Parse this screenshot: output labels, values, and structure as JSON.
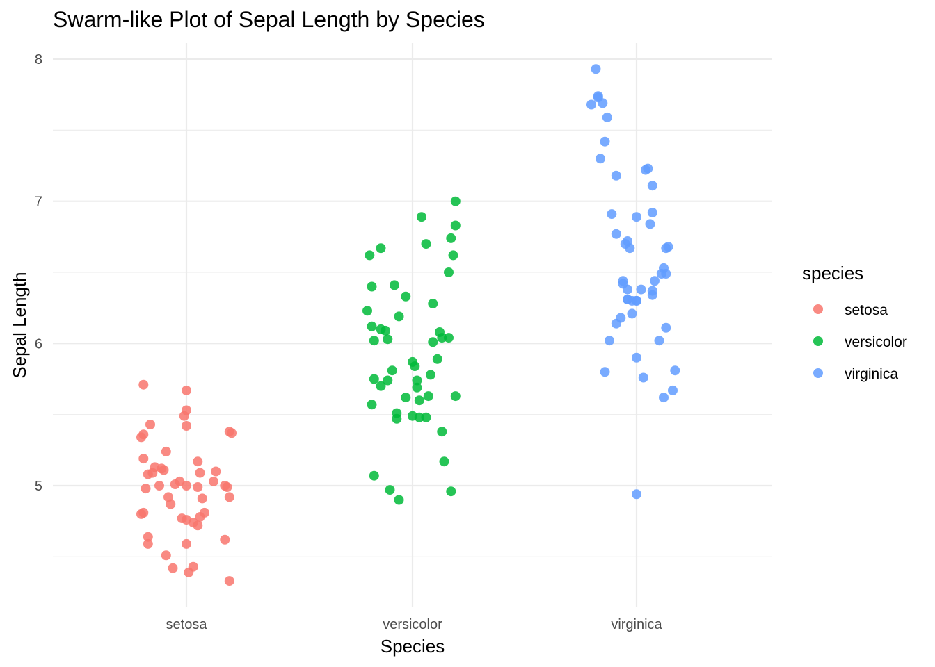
{
  "chart_data": {
    "type": "scatter",
    "title": "Swarm-like Plot of Sepal Length by Species",
    "xlabel": "Species",
    "ylabel": "Sepal Length",
    "categories": [
      "setosa",
      "versicolor",
      "virginica"
    ],
    "ylim": [
      4.25,
      8.1
    ],
    "y_ticks": [
      "5",
      "6",
      "7",
      "8"
    ],
    "grid": true,
    "legend": {
      "title": "species",
      "position": "right"
    },
    "colors": {
      "setosa": "#F8766D",
      "versicolor": "#00BA38",
      "virginica": "#619CFF"
    },
    "series": [
      {
        "name": "setosa",
        "jitter": [
          -0.19,
          -0.16,
          -0.19,
          -0.2,
          -0.19,
          -0.1,
          -0.12,
          -0.09,
          -0.11,
          -0.15,
          -0.14,
          -0.17,
          -0.18,
          -0.19,
          -0.2,
          -0.17,
          -0.17,
          -0.09,
          -0.06,
          -0.07,
          0.01,
          -0.05,
          -0.03,
          0.06,
          0.03,
          0.08,
          0.05,
          0.0,
          -0.08,
          0.0,
          0.03,
          0.07,
          0.0,
          -0.02,
          0.05,
          0.06,
          0.05,
          0.12,
          0.13,
          0.17,
          0.18,
          0.19,
          0.17,
          0.19,
          0.2,
          0.19,
          0.0,
          0.0,
          0.0,
          -0.01
        ],
        "values": [
          5.71,
          5.43,
          5.36,
          5.34,
          5.19,
          5.11,
          5.0,
          5.24,
          5.12,
          5.09,
          5.13,
          5.08,
          4.98,
          4.81,
          4.8,
          4.64,
          4.59,
          4.51,
          4.42,
          4.87,
          4.39,
          5.01,
          5.03,
          4.78,
          4.74,
          4.81,
          4.72,
          4.59,
          4.92,
          4.76,
          4.43,
          4.91,
          5.0,
          4.77,
          4.99,
          5.09,
          5.17,
          5.03,
          5.1,
          5.0,
          4.99,
          4.92,
          4.62,
          4.33,
          5.37,
          5.38,
          5.42,
          5.53,
          5.67,
          5.49
        ]
      },
      {
        "name": "versicolor",
        "jitter": [
          -0.19,
          -0.14,
          -0.18,
          -0.2,
          -0.18,
          -0.17,
          -0.14,
          -0.11,
          -0.12,
          -0.08,
          -0.17,
          -0.18,
          -0.14,
          -0.11,
          -0.09,
          -0.07,
          -0.07,
          -0.03,
          -0.03,
          -0.06,
          0.0,
          0.01,
          0.02,
          0.02,
          0.03,
          0.0,
          0.03,
          0.06,
          0.07,
          0.08,
          0.09,
          0.09,
          0.11,
          0.13,
          0.12,
          0.13,
          0.14,
          0.17,
          0.19,
          0.16,
          0.19,
          0.19,
          0.17,
          0.18,
          0.16,
          0.06,
          0.04,
          -0.06,
          -0.1,
          -0.17
        ],
        "values": [
          6.62,
          6.67,
          6.4,
          6.23,
          6.12,
          6.02,
          6.1,
          6.03,
          6.09,
          6.41,
          5.75,
          5.57,
          5.7,
          5.74,
          5.81,
          5.47,
          5.51,
          5.62,
          6.33,
          6.19,
          5.87,
          5.84,
          5.74,
          5.69,
          5.6,
          5.49,
          5.48,
          5.48,
          5.63,
          5.78,
          6.28,
          6.01,
          5.89,
          6.04,
          6.08,
          5.38,
          5.17,
          4.96,
          5.63,
          6.04,
          7.0,
          6.83,
          6.74,
          6.62,
          6.5,
          6.7,
          6.89,
          4.9,
          4.97,
          5.07
        ]
      },
      {
        "name": "virginica",
        "jitter": [
          -0.18,
          -0.2,
          -0.16,
          -0.14,
          -0.15,
          -0.17,
          -0.17,
          -0.13,
          -0.09,
          -0.11,
          -0.09,
          -0.04,
          -0.03,
          -0.05,
          -0.04,
          -0.04,
          -0.0,
          -0.06,
          -0.06,
          -0.07,
          -0.02,
          -0.02,
          -0.09,
          -0.12,
          -0.14,
          0.03,
          0.0,
          -0.04,
          0.07,
          0.08,
          0.11,
          0.13,
          0.12,
          0.14,
          0.13,
          0.07,
          0.06,
          0.07,
          0.05,
          0.04,
          0.07,
          0.1,
          0.12,
          0.16,
          0.17,
          0.13,
          0.02,
          0.0,
          0.0,
          0.0
        ],
        "values": [
          7.93,
          7.68,
          7.3,
          7.42,
          7.69,
          7.73,
          7.74,
          7.59,
          7.18,
          6.91,
          6.77,
          6.72,
          6.67,
          6.7,
          6.31,
          6.31,
          6.3,
          6.44,
          6.42,
          6.18,
          6.21,
          6.3,
          6.14,
          6.02,
          5.8,
          5.76,
          5.9,
          6.38,
          6.34,
          6.44,
          6.49,
          6.49,
          6.53,
          6.68,
          6.67,
          6.92,
          6.84,
          7.11,
          7.23,
          7.22,
          6.37,
          6.02,
          5.62,
          5.67,
          5.81,
          6.11,
          6.38,
          6.3,
          6.89,
          4.94
        ]
      }
    ]
  }
}
